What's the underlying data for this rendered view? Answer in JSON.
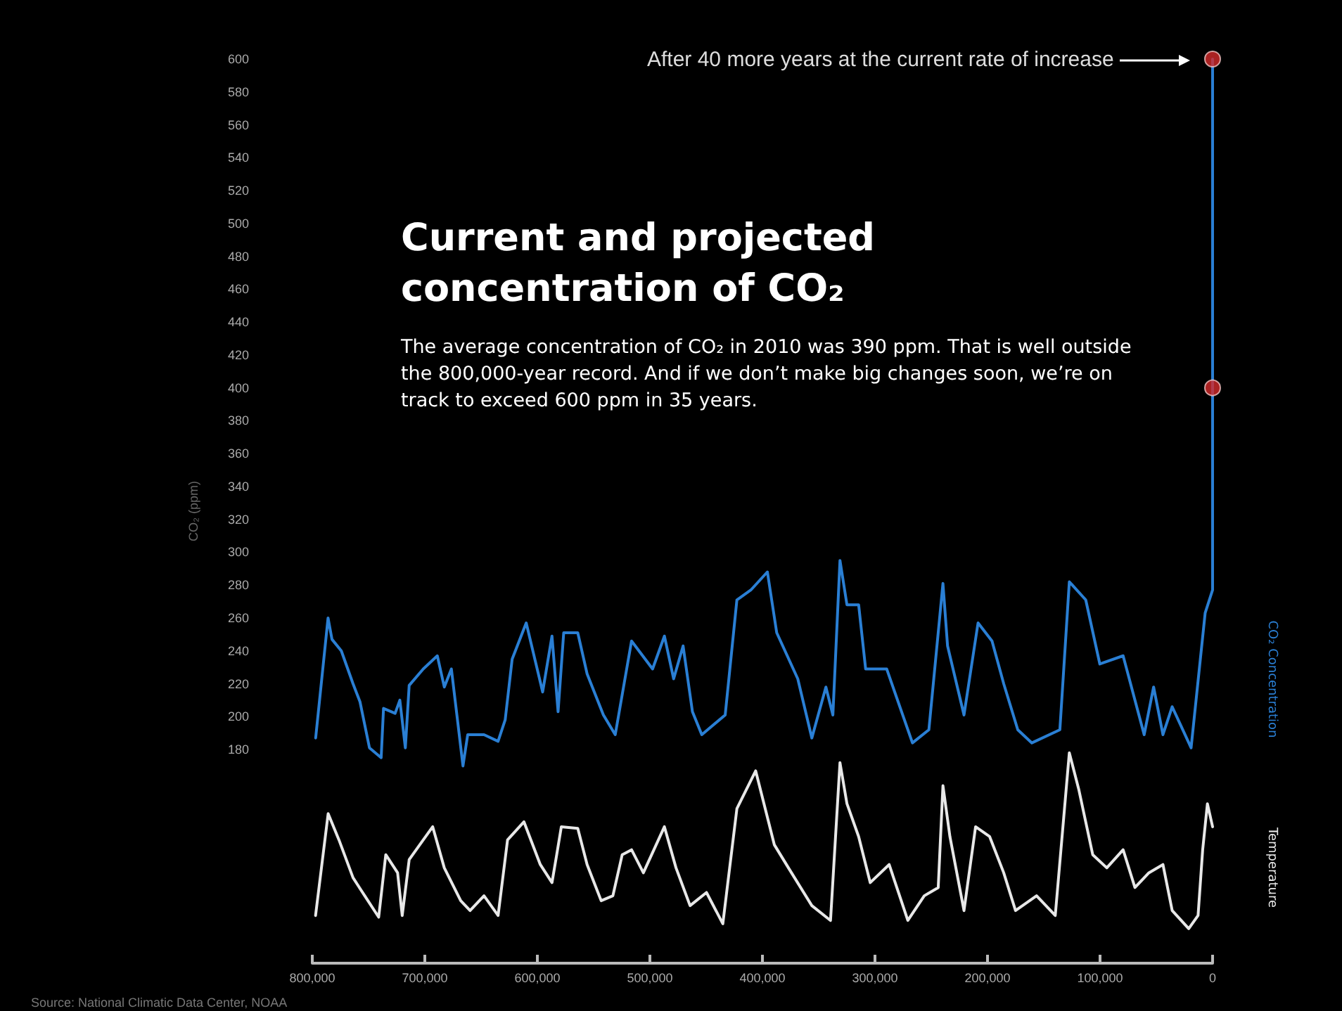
{
  "chart_data": {
    "type": "line",
    "title": "Current and projected concentration of CO₂",
    "subtitle": "The average concentration of CO₂ in 2010 was 390 ppm. That is well outside the 800,000-year record. And if we don’t make big changes soon, we’re on track to exceed 600 ppm in 35 years.",
    "ylabel": "CO₂ (ppm)",
    "annotations": [
      "After 40 more years at the current rate of increase",
      "Source: National Climatic Data Center, NOAA"
    ],
    "xlim": [
      800000,
      0
    ],
    "xticks": [
      {
        "value": 800000,
        "label": "800,000"
      },
      {
        "value": 700000,
        "label": "700,000"
      },
      {
        "value": 600000,
        "label": "600,000"
      },
      {
        "value": 500000,
        "label": "500,000"
      },
      {
        "value": 400000,
        "label": "400,000"
      },
      {
        "value": 300000,
        "label": "300,000"
      },
      {
        "value": 200000,
        "label": "200,000"
      },
      {
        "value": 100000,
        "label": "100,000"
      },
      0
    ],
    "ylim": [
      50,
      600
    ],
    "yticks": [
      180,
      200,
      220,
      240,
      260,
      280,
      300,
      320,
      340,
      360,
      380,
      400,
      420,
      440,
      460,
      480,
      500,
      520,
      540,
      560,
      580,
      600
    ],
    "grid": false,
    "marker": "none",
    "line_style": "solid",
    "series": [
      {
        "name": "CO₂ Concentration",
        "color": "#2a7fd4",
        "x": [
          797000,
          786000,
          782500,
          774200,
          763800,
          757600,
          749200,
          738800,
          736700,
          726400,
          722200,
          717300,
          713900,
          701400,
          688900,
          682700,
          676400,
          666100,
          661900,
          647400,
          634900,
          628600,
          622400,
          609900,
          595300,
          587000,
          581600,
          576600,
          564100,
          555800,
          541300,
          530800,
          516300,
          497600,
          487100,
          478900,
          470500,
          462200,
          453900,
          433100,
          422700,
          410300,
          395600,
          387300,
          368600,
          356100,
          343600,
          337400,
          331100,
          324900,
          314500,
          308300,
          289600,
          266700,
          252100,
          239600,
          235500,
          220900,
          208400,
          196000,
          185600,
          173100,
          160600,
          135700,
          127300,
          112700,
          100200,
          79500,
          60800,
          52400,
          44100,
          35900,
          19100,
          6600,
          0,
          0
        ],
        "values": [
          187,
          260,
          247,
          240,
          220,
          209,
          181,
          175,
          205,
          202,
          210,
          181,
          219,
          229,
          237,
          218,
          229,
          170,
          189,
          189,
          185,
          198,
          235,
          257,
          215,
          249,
          203,
          251,
          251,
          226,
          201,
          189,
          246,
          229,
          249,
          223,
          243,
          203,
          189,
          201,
          271,
          277,
          288,
          251,
          223,
          187,
          218,
          201,
          295,
          268,
          268,
          229,
          229,
          184,
          192,
          281,
          243,
          201,
          257,
          246,
          220,
          192,
          184,
          192,
          282,
          271,
          232,
          237,
          189,
          218,
          189,
          206,
          181,
          263,
          277,
          600
        ]
      },
      {
        "name": "Temperature",
        "color": "#e8e8e8",
        "x": [
          797100,
          785900,
          776300,
          763800,
          753400,
          741000,
          734700,
          724200,
          720100,
          713900,
          701400,
          693000,
          682700,
          668100,
          659800,
          647400,
          634900,
          626500,
          611900,
          597400,
          587000,
          582800,
          578700,
          564100,
          555800,
          543300,
          532900,
          524600,
          516300,
          505800,
          487100,
          476800,
          464300,
          449700,
          435200,
          422700,
          406000,
          389400,
          376900,
          356100,
          339500,
          331100,
          324900,
          314500,
          304200,
          287400,
          270800,
          256200,
          243800,
          239600,
          233400,
          220900,
          210600,
          198100,
          185600,
          175100,
          156400,
          139800,
          127300,
          119000,
          106500,
          94000,
          79500,
          69000,
          56600,
          44100,
          35900,
          21200,
          12900,
          8800,
          4600,
          0
        ],
        "values": [
          79,
          141,
          125,
          102,
          91,
          78,
          116,
          105,
          79,
          113,
          125,
          133,
          108,
          88,
          82,
          91,
          79,
          125,
          136,
          110,
          99,
          116,
          133,
          132,
          110,
          88,
          91,
          116,
          119,
          105,
          133,
          108,
          85,
          93,
          74,
          144,
          167,
          122,
          108,
          85,
          76,
          172,
          147,
          127,
          99,
          110,
          76,
          91,
          96,
          158,
          127,
          82,
          133,
          127,
          105,
          82,
          91,
          79,
          178,
          156,
          116,
          108,
          119,
          96,
          105,
          110,
          82,
          71,
          79,
          119,
          147,
          133
        ]
      },
      {
        "type": "scatter",
        "marker": "circle",
        "color": "#d42a2a",
        "x": [
          0,
          0
        ],
        "values": [
          400,
          600
        ]
      }
    ]
  }
}
